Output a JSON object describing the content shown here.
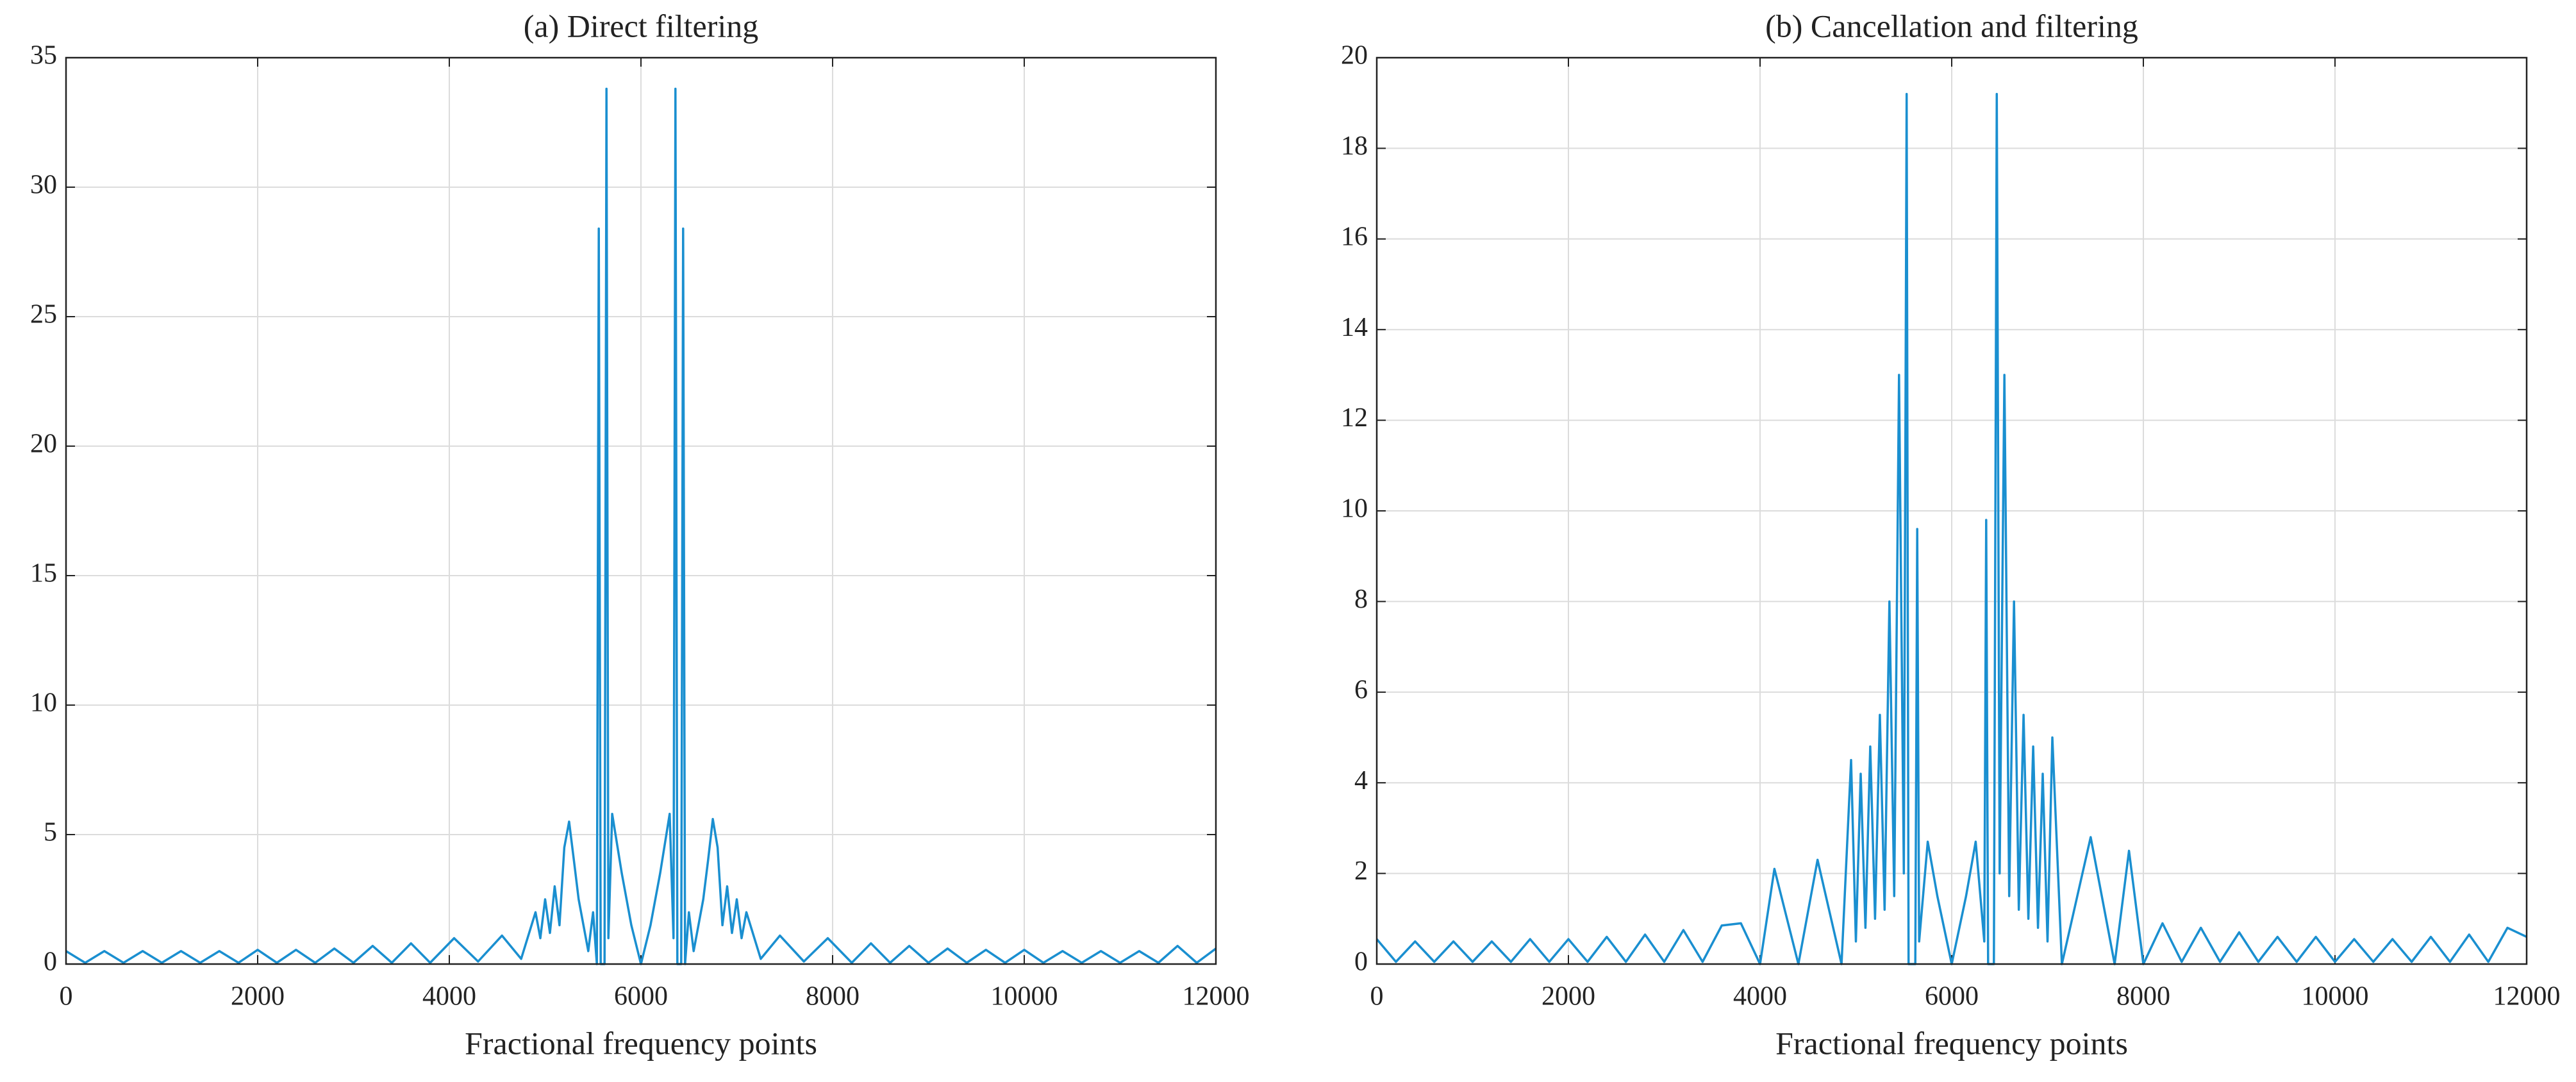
{
  "chart_data": [
    {
      "type": "line",
      "title": "(a) Direct filtering",
      "x_label": "Fractional frequency points",
      "color": "#1a8fd0",
      "grid": true,
      "xlim": [
        0,
        12000
      ],
      "xticks": [
        0,
        2000,
        4000,
        6000,
        8000,
        10000,
        12000
      ],
      "ylim": [
        0,
        35
      ],
      "yticks": [
        0,
        5,
        10,
        15,
        20,
        25,
        30,
        35
      ],
      "x": [
        0,
        200,
        400,
        600,
        800,
        1000,
        1200,
        1400,
        1600,
        1800,
        2000,
        2200,
        2400,
        2600,
        2800,
        3000,
        3200,
        3400,
        3600,
        3800,
        4050,
        4300,
        4550,
        4750,
        4900,
        4950,
        5000,
        5050,
        5100,
        5150,
        5200,
        5250,
        5300,
        5350,
        5400,
        5450,
        5500,
        5540,
        5560,
        5580,
        5620,
        5640,
        5660,
        5700,
        5800,
        5900,
        6000,
        6100,
        6200,
        6300,
        6340,
        6360,
        6380,
        6420,
        6440,
        6460,
        6500,
        6550,
        6600,
        6650,
        6700,
        6750,
        6800,
        6850,
        6900,
        6950,
        7000,
        7050,
        7100,
        7250,
        7450,
        7700,
        7950,
        8200,
        8400,
        8600,
        8800,
        9000,
        9200,
        9400,
        9600,
        9800,
        10000,
        10200,
        10400,
        10600,
        10800,
        11000,
        11200,
        11400,
        11600,
        11800,
        12000
      ],
      "values": [
        0.5,
        0.05,
        0.5,
        0.05,
        0.5,
        0.05,
        0.5,
        0.05,
        0.5,
        0.05,
        0.55,
        0.05,
        0.55,
        0.05,
        0.6,
        0.05,
        0.7,
        0.05,
        0.8,
        0.05,
        1.0,
        0.1,
        1.1,
        0.2,
        2.0,
        1.0,
        2.5,
        1.2,
        3.0,
        1.5,
        4.5,
        5.5,
        4.0,
        2.5,
        1.5,
        0.5,
        2.0,
        0,
        28.4,
        0,
        0,
        33.8,
        1.0,
        5.8,
        3.5,
        1.5,
        0,
        1.5,
        3.5,
        5.8,
        1.0,
        33.8,
        0,
        0,
        28.4,
        0,
        2.0,
        0.5,
        1.5,
        2.5,
        4.0,
        5.6,
        4.5,
        1.5,
        3.0,
        1.2,
        2.5,
        1.0,
        2.0,
        0.2,
        1.1,
        0.1,
        1.0,
        0.05,
        0.8,
        0.05,
        0.7,
        0.05,
        0.6,
        0.05,
        0.55,
        0.05,
        0.55,
        0.05,
        0.5,
        0.05,
        0.5,
        0.05,
        0.5,
        0.05,
        0.7,
        0.05,
        0.6
      ]
    },
    {
      "type": "line",
      "title": "(b) Cancellation and filtering",
      "x_label": "Fractional frequency points",
      "color": "#1a8fd0",
      "grid": true,
      "xlim": [
        0,
        12000
      ],
      "xticks": [
        0,
        2000,
        4000,
        6000,
        8000,
        10000,
        12000
      ],
      "ylim": [
        0,
        20
      ],
      "yticks": [
        0,
        2,
        4,
        6,
        8,
        10,
        12,
        14,
        16,
        18,
        20
      ],
      "x": [
        0,
        200,
        400,
        600,
        800,
        1000,
        1200,
        1400,
        1600,
        1800,
        2000,
        2200,
        2400,
        2600,
        2800,
        3000,
        3200,
        3400,
        3600,
        3800,
        4000,
        4150,
        4400,
        4600,
        4850,
        4950,
        5000,
        5050,
        5100,
        5150,
        5200,
        5250,
        5300,
        5350,
        5400,
        5450,
        5500,
        5530,
        5550,
        5620,
        5640,
        5660,
        5750,
        5850,
        6000,
        6150,
        6250,
        6340,
        6360,
        6380,
        6440,
        6470,
        6500,
        6550,
        6600,
        6650,
        6700,
        6750,
        6800,
        6850,
        6900,
        6950,
        7000,
        7050,
        7150,
        7450,
        7700,
        7850,
        8000,
        8200,
        8400,
        8600,
        8800,
        9000,
        9200,
        9400,
        9600,
        9800,
        10000,
        10200,
        10400,
        10600,
        10800,
        11000,
        11200,
        11400,
        11600,
        11800,
        12000
      ],
      "values": [
        0.55,
        0.05,
        0.5,
        0.05,
        0.5,
        0.05,
        0.5,
        0.05,
        0.55,
        0.05,
        0.55,
        0.05,
        0.6,
        0.05,
        0.65,
        0.05,
        0.75,
        0.05,
        0.85,
        0.9,
        0,
        2.1,
        0,
        2.3,
        0,
        4.5,
        0.5,
        4.2,
        0.8,
        4.8,
        1.0,
        5.5,
        1.2,
        8.0,
        1.5,
        13.0,
        2.0,
        19.2,
        0,
        0,
        9.6,
        0.5,
        2.7,
        1.5,
        0,
        1.5,
        2.7,
        0.5,
        9.8,
        0,
        0,
        19.2,
        2.0,
        13.0,
        1.5,
        8.0,
        1.2,
        5.5,
        1.0,
        4.8,
        0.8,
        4.2,
        0.5,
        5.0,
        0,
        2.8,
        0,
        2.5,
        0,
        0.9,
        0.05,
        0.8,
        0.05,
        0.7,
        0.05,
        0.6,
        0.05,
        0.6,
        0.05,
        0.55,
        0.05,
        0.55,
        0.05,
        0.6,
        0.05,
        0.65,
        0.05,
        0.8,
        0.6
      ]
    }
  ]
}
